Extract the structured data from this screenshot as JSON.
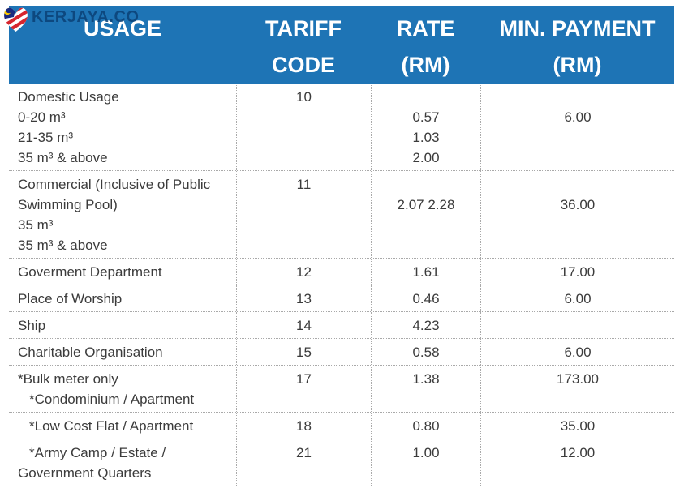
{
  "brand": {
    "name": "KERJAYA.CO",
    "icon": "malaysia-flag-heart-icon",
    "text_color": "#0b4278",
    "flag_red": "#d6252e",
    "flag_blue": "#1a2a80",
    "flag_yellow": "#ffcc00"
  },
  "colors": {
    "header_bg": "#1e74b5",
    "header_text": "#ffffff",
    "body_text": "#3b3b3b",
    "divider": "#a9a9a9"
  },
  "table": {
    "columns": [
      {
        "key": "usage",
        "lines": [
          "USAGE"
        ]
      },
      {
        "key": "tariff_code",
        "lines": [
          "TARIFF",
          "CODE"
        ]
      },
      {
        "key": "rate",
        "lines": [
          "RATE",
          "(RM)"
        ]
      },
      {
        "key": "min_payment",
        "lines": [
          "MIN. PAYMENT",
          "(RM)"
        ]
      }
    ],
    "rows": [
      {
        "usage_lines": [
          {
            "text": "Domestic Usage"
          },
          {
            "text": "0-20 m³"
          },
          {
            "text": "21-35 m³"
          },
          {
            "text": "35 m³ & above"
          }
        ],
        "tariff_code": "10",
        "rate_lines": [
          "",
          "0.57",
          "1.03",
          "2.00"
        ],
        "min_payment_lines": [
          "",
          "6.00"
        ]
      },
      {
        "usage_lines": [
          {
            "text": "Commercial (Inclusive of Public"
          },
          {
            "text": "Swimming Pool)"
          },
          {
            "text": "35 m³"
          },
          {
            "text": "35 m³ & above"
          }
        ],
        "tariff_code": "11",
        "rate_lines": [
          "",
          "2.07 2.28"
        ],
        "min_payment_lines": [
          "",
          "36.00"
        ]
      },
      {
        "usage_lines": [
          {
            "text": "Goverment Department"
          }
        ],
        "tariff_code": "12",
        "rate_lines": [
          "1.61"
        ],
        "min_payment_lines": [
          "17.00"
        ]
      },
      {
        "usage_lines": [
          {
            "text": "Place of Worship"
          }
        ],
        "tariff_code": "13",
        "rate_lines": [
          "0.46"
        ],
        "min_payment_lines": [
          "6.00"
        ]
      },
      {
        "usage_lines": [
          {
            "text": "Ship"
          }
        ],
        "tariff_code": "14",
        "rate_lines": [
          "4.23"
        ],
        "min_payment_lines": [
          ""
        ]
      },
      {
        "usage_lines": [
          {
            "text": "Charitable Organisation"
          }
        ],
        "tariff_code": "15",
        "rate_lines": [
          "0.58"
        ],
        "min_payment_lines": [
          "6.00"
        ]
      },
      {
        "usage_lines": [
          {
            "text": "*Bulk meter only"
          },
          {
            "text": "*Condominium / Apartment",
            "indent": true
          }
        ],
        "tariff_code": "17",
        "rate_lines": [
          "1.38"
        ],
        "min_payment_lines": [
          "173.00"
        ]
      },
      {
        "usage_lines": [
          {
            "text": "*Low Cost Flat / Apartment",
            "indent": true
          }
        ],
        "tariff_code": "18",
        "rate_lines": [
          "0.80"
        ],
        "min_payment_lines": [
          "35.00"
        ]
      },
      {
        "usage_lines": [
          {
            "text": "*Army Camp / Estate /",
            "indent": true
          },
          {
            "text": "Government Quarters"
          }
        ],
        "tariff_code": "21",
        "rate_lines": [
          "1.00"
        ],
        "min_payment_lines": [
          "12.00"
        ]
      }
    ]
  }
}
